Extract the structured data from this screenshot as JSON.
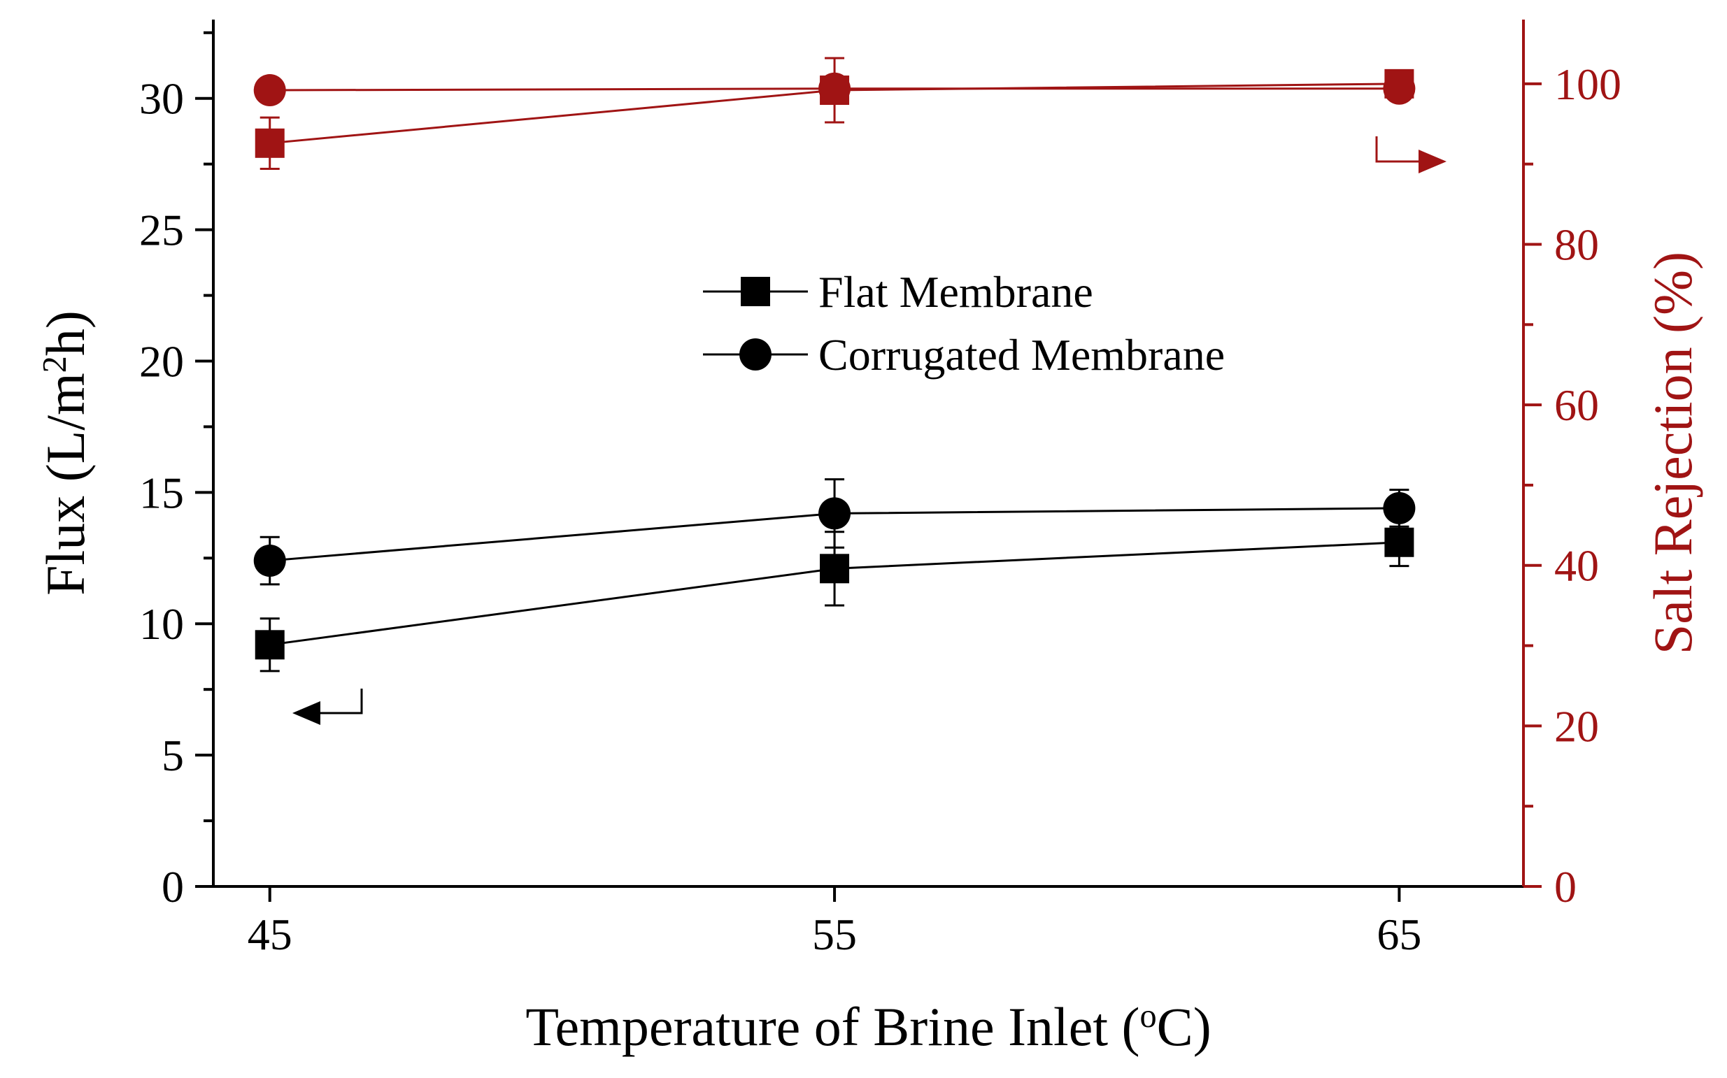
{
  "chart_data": {
    "type": "line",
    "x": [
      45,
      55,
      65
    ],
    "xlabel": "Temperature of Brine Inlet (°C)",
    "xlabel_parts": {
      "pre": "Temperature of Brine Inlet (",
      "sup": "o",
      "post": "C)"
    },
    "xticks": [
      "45",
      "55",
      "65"
    ],
    "xlim": [
      44,
      67.2
    ],
    "ylabel": "Flux (L/m²h)",
    "ylabel_parts": {
      "pre": "Flux (L/m",
      "sup": "2",
      "post": "h)"
    },
    "yticks": [
      "0",
      "5",
      "10",
      "15",
      "20",
      "25",
      "30"
    ],
    "ylim": [
      0,
      33
    ],
    "y2label": "Salt Rejection (%)",
    "y2ticks": [
      "0",
      "20",
      "40",
      "60",
      "80",
      "100"
    ],
    "y2lim": [
      0,
      108
    ],
    "legend": {
      "placement": "center",
      "entries": [
        {
          "name": "Flat Membrane",
          "marker": "square"
        },
        {
          "name": "Corrugated Membrane",
          "marker": "circle"
        }
      ]
    },
    "series": [
      {
        "name": "Flat Membrane",
        "axis": "left",
        "marker": "square",
        "color": "#000000",
        "values": [
          9.2,
          12.1,
          13.1
        ],
        "errors": [
          1.0,
          1.4,
          0.9
        ]
      },
      {
        "name": "Corrugated Membrane",
        "axis": "left",
        "marker": "circle",
        "color": "#000000",
        "values": [
          12.4,
          14.2,
          14.4
        ],
        "errors": [
          0.9,
          1.3,
          0.7
        ]
      },
      {
        "axis": "right",
        "marker": "square",
        "color": "#a01414",
        "values": [
          92.6,
          99.2,
          100.0
        ],
        "errors": [
          3.2,
          4.0,
          1.0
        ]
      },
      {
        "axis": "right",
        "marker": "circle",
        "color": "#a01414",
        "values": [
          99.2,
          99.4,
          99.4
        ],
        "errors": [
          1.2,
          1.2,
          1.2
        ]
      }
    ],
    "axis_colors": {
      "left": "#000000",
      "right": "#a01414"
    },
    "annotations": [
      {
        "type": "arrow",
        "direction": "left",
        "points_to": "left-axis",
        "color": "#000000"
      },
      {
        "type": "arrow",
        "direction": "right",
        "points_to": "right-axis",
        "color": "#a01414"
      }
    ]
  }
}
